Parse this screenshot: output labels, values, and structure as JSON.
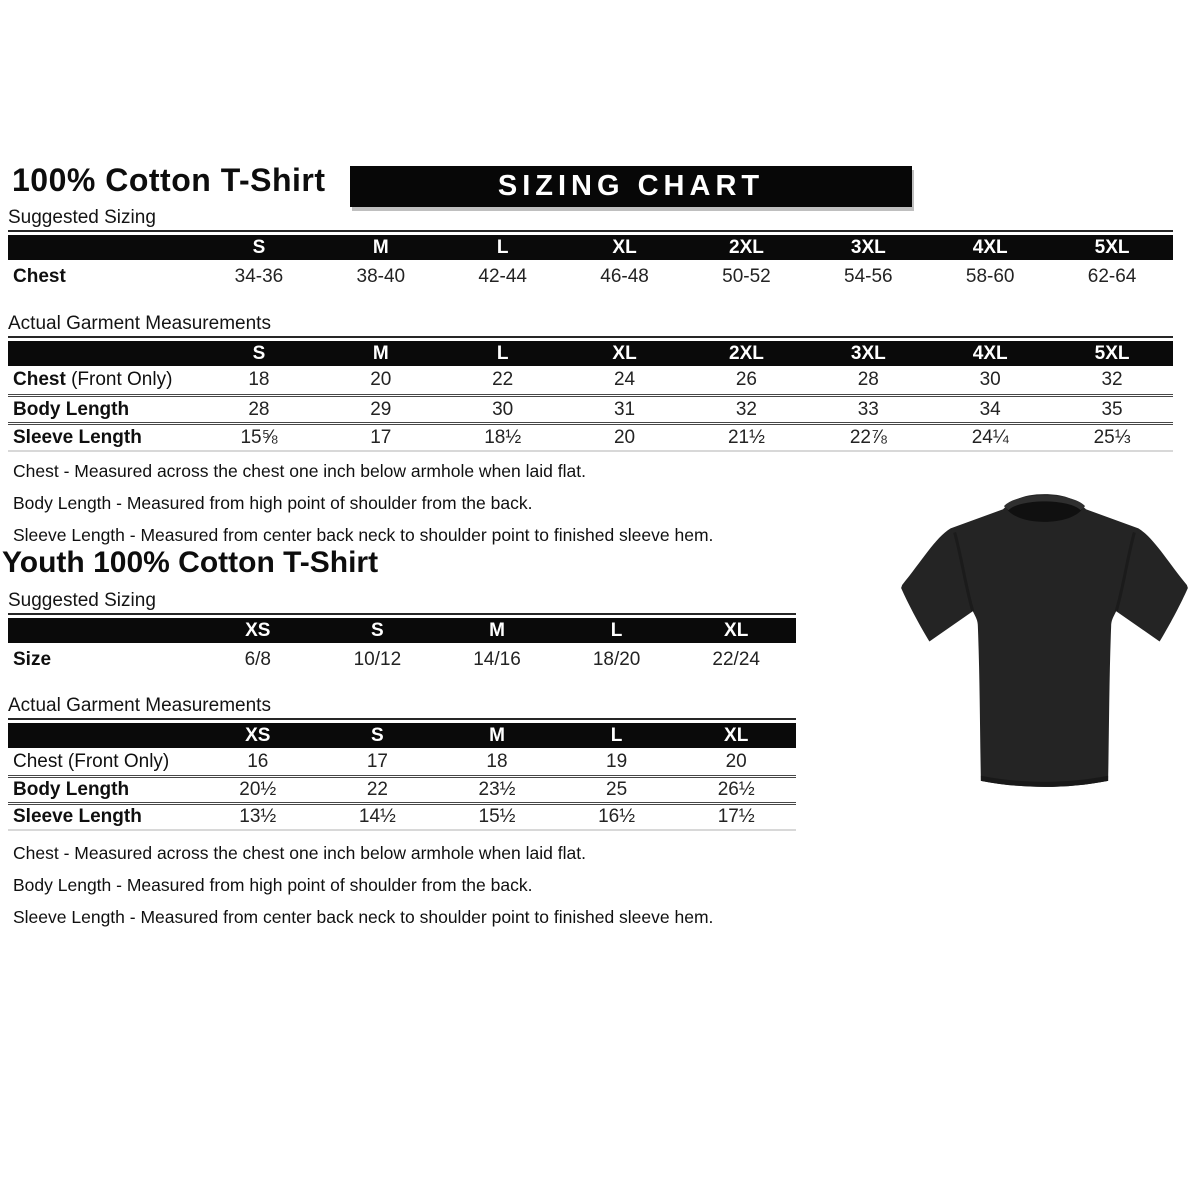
{
  "colors": {
    "header_bar": "#0a0a0a",
    "header_bar_text": "#ffffff",
    "body_text": "#161616"
  },
  "adult": {
    "title": "100% Cotton T-Shirt",
    "banner_title": "SIZING CHART",
    "suggested_label": "Suggested Sizing",
    "suggested_table": {
      "columns": [
        "S",
        "M",
        "L",
        "XL",
        "2XL",
        "3XL",
        "4XL",
        "5XL"
      ],
      "rows": [
        {
          "label": "Chest",
          "suffix": "",
          "bold": true,
          "values": [
            "34-36",
            "38-40",
            "42-44",
            "46-48",
            "50-52",
            "54-56",
            "58-60",
            "62-64"
          ]
        }
      ]
    },
    "actual_label": "Actual Garment Measurements",
    "actual_table": {
      "columns": [
        "S",
        "M",
        "L",
        "XL",
        "2XL",
        "3XL",
        "4XL",
        "5XL"
      ],
      "rows": [
        {
          "label": "Chest",
          "suffix": " (Front Only)",
          "bold": true,
          "values": [
            "18",
            "20",
            "22",
            "24",
            "26",
            "28",
            "30",
            "32"
          ]
        },
        {
          "label": "Body Length",
          "suffix": "",
          "bold": true,
          "values": [
            "28",
            "29",
            "30",
            "31",
            "32",
            "33",
            "34",
            "35"
          ]
        },
        {
          "label": "Sleeve Length",
          "suffix": "",
          "bold": true,
          "values": [
            "15⅝",
            "17",
            "18½",
            "20",
            "21½",
            "22⅞",
            "24¼",
            "25⅓"
          ]
        }
      ]
    },
    "notes": [
      "Chest - Measured across the chest one inch below armhole when laid flat.",
      "Body Length - Measured from high point of shoulder from the back.",
      "Sleeve Length - Measured from center back neck to shoulder point to finished sleeve hem."
    ]
  },
  "youth": {
    "title": "Youth 100% Cotton T-Shirt",
    "suggested_label": "Suggested Sizing",
    "suggested_table": {
      "columns": [
        "XS",
        "S",
        "M",
        "L",
        "XL"
      ],
      "rows": [
        {
          "label": "Size",
          "suffix": "",
          "bold": true,
          "values": [
            "6/8",
            "10/12",
            "14/16",
            "18/20",
            "22/24"
          ]
        }
      ]
    },
    "actual_label": "Actual Garment Measurements",
    "actual_table": {
      "columns": [
        "XS",
        "S",
        "M",
        "L",
        "XL"
      ],
      "rows": [
        {
          "label": "Chest (Front Only)",
          "suffix": "",
          "bold": false,
          "values": [
            "16",
            "17",
            "18",
            "19",
            "20"
          ]
        },
        {
          "label": "Body Length",
          "suffix": "",
          "bold": true,
          "values": [
            "20½",
            "22",
            "23½",
            "25",
            "26½"
          ]
        },
        {
          "label": "Sleeve Length",
          "suffix": "",
          "bold": true,
          "values": [
            "13½",
            "14½",
            "15½",
            "16½",
            "17½"
          ]
        }
      ]
    },
    "notes": [
      "Chest - Measured across the chest one inch below armhole when laid flat.",
      "Body Length - Measured from high point of shoulder from the back.",
      "Sleeve Length - Measured from center back neck to shoulder point to finished sleeve hem."
    ]
  },
  "product_image": {
    "name": "black-tshirt-photo",
    "color": "#242424",
    "collar_color": "#101010",
    "trim_color": "#2f2f2f"
  }
}
